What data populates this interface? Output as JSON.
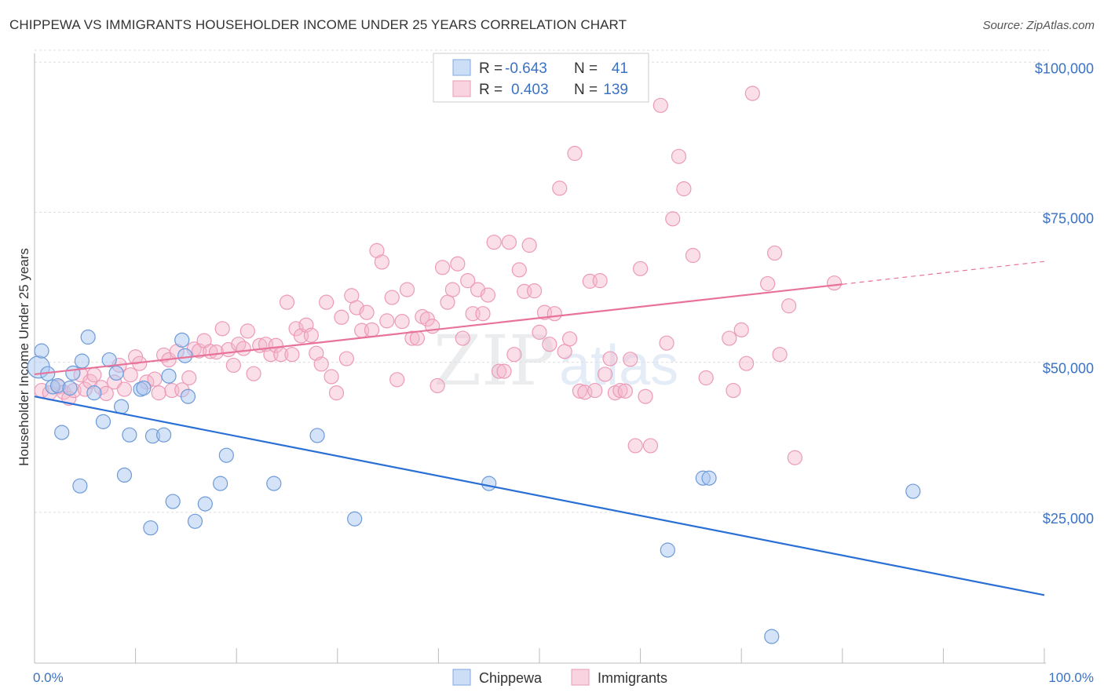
{
  "title": "CHIPPEWA VS IMMIGRANTS HOUSEHOLDER INCOME UNDER 25 YEARS CORRELATION CHART",
  "source": "Source: ZipAtlas.com",
  "watermark": {
    "part1": "ZIP",
    "part2": "atlas"
  },
  "colors": {
    "blue_fill": "#aac8f0",
    "blue_line": "#2a6fd6",
    "pink_fill": "#f4b8cc",
    "pink_line": "#e8739a",
    "axis_text": "#3a72c4",
    "grid": "#dddddd"
  },
  "legend": {
    "rows": [
      {
        "r_label": "R =",
        "r_value": "-0.643",
        "n_label": "N =",
        "n_value": "41"
      },
      {
        "r_label": "R =",
        "r_value": "0.403",
        "n_label": "N =",
        "n_value": "139"
      }
    ]
  },
  "bottom_legend": [
    "Chippewa",
    "Immigrants"
  ],
  "chart_data": {
    "type": "scatter",
    "title": "CHIPPEWA VS IMMIGRANTS HOUSEHOLDER INCOME UNDER 25 YEARS CORRELATION CHART",
    "xlabel": "",
    "ylabel": "Householder Income Under 25 years",
    "xlim": [
      0,
      100
    ],
    "ylim": [
      0,
      102000
    ],
    "x_tick_labels": [
      "0.0%",
      "100.0%"
    ],
    "y_ticks": [
      25000,
      50000,
      75000,
      100000
    ],
    "y_tick_labels": [
      "$25,000",
      "$50,000",
      "$75,000",
      "$100,000"
    ],
    "grid": true,
    "legend_position": "top-center",
    "series": [
      {
        "name": "Chippewa",
        "color": "#aac8f0",
        "trend": {
          "x": [
            0,
            100
          ],
          "y": [
            44300,
            11200
          ]
        },
        "points": [
          [
            0.4,
            49200
          ],
          [
            0.7,
            51900
          ],
          [
            1.3,
            48100
          ],
          [
            1.8,
            45900
          ],
          [
            2.3,
            46100
          ],
          [
            2.7,
            38300
          ],
          [
            3.5,
            45700
          ],
          [
            3.8,
            48200
          ],
          [
            4.5,
            29400
          ],
          [
            4.7,
            50200
          ],
          [
            5.3,
            54200
          ],
          [
            5.9,
            44900
          ],
          [
            6.8,
            40100
          ],
          [
            7.4,
            50400
          ],
          [
            8.1,
            48200
          ],
          [
            8.6,
            42600
          ],
          [
            8.9,
            31200
          ],
          [
            9.4,
            37900
          ],
          [
            10.5,
            45500
          ],
          [
            10.8,
            45700
          ],
          [
            11.5,
            22400
          ],
          [
            11.7,
            37700
          ],
          [
            12.8,
            37900
          ],
          [
            13.3,
            47700
          ],
          [
            13.7,
            26800
          ],
          [
            14.6,
            53700
          ],
          [
            14.9,
            51100
          ],
          [
            15.2,
            44300
          ],
          [
            15.9,
            23500
          ],
          [
            16.9,
            26400
          ],
          [
            18.4,
            29800
          ],
          [
            19.0,
            34500
          ],
          [
            23.7,
            29800
          ],
          [
            28.0,
            37800
          ],
          [
            31.7,
            23900
          ],
          [
            45.0,
            29800
          ],
          [
            62.7,
            18700
          ],
          [
            66.2,
            30700
          ],
          [
            66.8,
            30700
          ],
          [
            73.0,
            4300
          ],
          [
            87.0,
            28500
          ]
        ]
      },
      {
        "name": "Immigrants",
        "color": "#f4b8cc",
        "trend": {
          "x": [
            0,
            80
          ],
          "y": [
            48000,
            63000
          ]
        },
        "trend_dashed": {
          "x": [
            80,
            100
          ],
          "y": [
            63000,
            66800
          ]
        },
        "points": [
          [
            0.7,
            45300
          ],
          [
            1.5,
            44900
          ],
          [
            2.4,
            45900
          ],
          [
            2.9,
            45000
          ],
          [
            3.4,
            44000
          ],
          [
            3.9,
            45300
          ],
          [
            4.6,
            47900
          ],
          [
            5.0,
            45500
          ],
          [
            5.5,
            46800
          ],
          [
            5.9,
            47900
          ],
          [
            6.6,
            45800
          ],
          [
            7.1,
            44800
          ],
          [
            7.9,
            46700
          ],
          [
            8.4,
            49500
          ],
          [
            8.9,
            45500
          ],
          [
            9.5,
            47900
          ],
          [
            10.0,
            50900
          ],
          [
            10.4,
            49800
          ],
          [
            11.1,
            46700
          ],
          [
            11.9,
            47200
          ],
          [
            12.3,
            44900
          ],
          [
            12.8,
            51200
          ],
          [
            13.3,
            50400
          ],
          [
            13.6,
            45300
          ],
          [
            14.1,
            51800
          ],
          [
            14.6,
            45400
          ],
          [
            15.3,
            47400
          ],
          [
            15.8,
            52200
          ],
          [
            16.3,
            51900
          ],
          [
            16.8,
            53600
          ],
          [
            17.4,
            51800
          ],
          [
            18.0,
            51700
          ],
          [
            18.6,
            55600
          ],
          [
            19.2,
            52100
          ],
          [
            19.7,
            49500
          ],
          [
            20.2,
            53000
          ],
          [
            20.7,
            52300
          ],
          [
            21.1,
            55200
          ],
          [
            21.7,
            48100
          ],
          [
            22.3,
            52800
          ],
          [
            22.9,
            53000
          ],
          [
            23.4,
            51300
          ],
          [
            23.9,
            52800
          ],
          [
            24.4,
            51300
          ],
          [
            25.0,
            60000
          ],
          [
            25.5,
            51300
          ],
          [
            25.9,
            55600
          ],
          [
            26.4,
            54400
          ],
          [
            26.9,
            56200
          ],
          [
            27.4,
            54500
          ],
          [
            27.9,
            51500
          ],
          [
            28.4,
            49700
          ],
          [
            28.9,
            60000
          ],
          [
            29.4,
            47600
          ],
          [
            29.9,
            44900
          ],
          [
            30.4,
            57500
          ],
          [
            30.9,
            50600
          ],
          [
            31.4,
            61100
          ],
          [
            31.9,
            59100
          ],
          [
            32.4,
            55300
          ],
          [
            32.9,
            58300
          ],
          [
            33.4,
            55400
          ],
          [
            33.9,
            68600
          ],
          [
            34.4,
            66700
          ],
          [
            34.9,
            56900
          ],
          [
            35.4,
            60800
          ],
          [
            35.9,
            47100
          ],
          [
            36.4,
            56800
          ],
          [
            36.9,
            62100
          ],
          [
            37.4,
            54000
          ],
          [
            37.9,
            54000
          ],
          [
            38.4,
            57600
          ],
          [
            38.9,
            57200
          ],
          [
            39.4,
            56000
          ],
          [
            39.9,
            46100
          ],
          [
            40.4,
            65800
          ],
          [
            40.9,
            60000
          ],
          [
            41.4,
            62100
          ],
          [
            41.9,
            66400
          ],
          [
            42.4,
            54000
          ],
          [
            42.9,
            63600
          ],
          [
            43.4,
            58100
          ],
          [
            43.9,
            62100
          ],
          [
            44.4,
            58100
          ],
          [
            44.9,
            61200
          ],
          [
            45.5,
            70000
          ],
          [
            46.0,
            48500
          ],
          [
            46.5,
            48500
          ],
          [
            47.0,
            70000
          ],
          [
            47.5,
            51300
          ],
          [
            48.0,
            65400
          ],
          [
            48.5,
            61800
          ],
          [
            49.0,
            69500
          ],
          [
            49.5,
            61900
          ],
          [
            50.0,
            55000
          ],
          [
            50.5,
            58300
          ],
          [
            51.0,
            53000
          ],
          [
            51.5,
            58100
          ],
          [
            52.0,
            79000
          ],
          [
            52.5,
            51800
          ],
          [
            53.0,
            53900
          ],
          [
            53.5,
            84800
          ],
          [
            54.0,
            45200
          ],
          [
            54.5,
            45000
          ],
          [
            55.0,
            63500
          ],
          [
            55.5,
            45300
          ],
          [
            56.0,
            63600
          ],
          [
            56.5,
            48000
          ],
          [
            57.0,
            50600
          ],
          [
            57.5,
            44900
          ],
          [
            58.0,
            45300
          ],
          [
            58.5,
            45200
          ],
          [
            59.0,
            50500
          ],
          [
            59.5,
            36100
          ],
          [
            60.0,
            65600
          ],
          [
            60.5,
            44300
          ],
          [
            61.0,
            36100
          ],
          [
            62.0,
            92800
          ],
          [
            62.6,
            53200
          ],
          [
            63.2,
            73900
          ],
          [
            63.8,
            84300
          ],
          [
            64.3,
            78900
          ],
          [
            65.2,
            67800
          ],
          [
            66.5,
            47400
          ],
          [
            68.8,
            54000
          ],
          [
            69.2,
            45300
          ],
          [
            70.0,
            55400
          ],
          [
            70.5,
            49800
          ],
          [
            71.1,
            94800
          ],
          [
            72.6,
            63100
          ],
          [
            73.3,
            68200
          ],
          [
            73.8,
            51300
          ],
          [
            74.7,
            59400
          ],
          [
            75.3,
            34100
          ],
          [
            79.2,
            63200
          ]
        ]
      }
    ]
  }
}
